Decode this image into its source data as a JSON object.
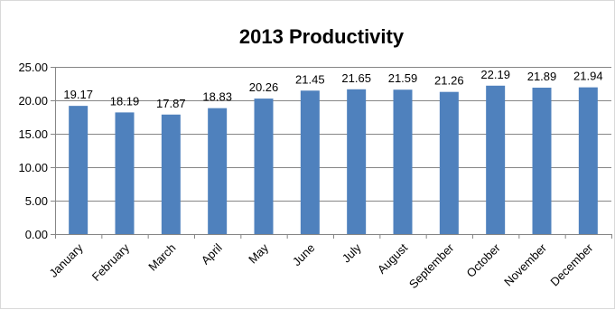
{
  "chart_data": {
    "type": "bar",
    "title": "2013 Productivity",
    "xlabel": "",
    "ylabel": "",
    "categories": [
      "January",
      "February",
      "March",
      "April",
      "May",
      "June",
      "July",
      "August",
      "September",
      "October",
      "November",
      "December"
    ],
    "values": [
      19.17,
      18.19,
      17.87,
      18.83,
      20.26,
      21.45,
      21.65,
      21.59,
      21.26,
      22.19,
      21.89,
      21.94
    ],
    "value_labels": [
      "19.17",
      "18.19",
      "17.87",
      "18.83",
      "20.26",
      "21.45",
      "21.65",
      "21.59",
      "21.26",
      "22.19",
      "21.89",
      "21.94"
    ],
    "ylim": [
      0,
      25
    ],
    "yticks": [
      0,
      5,
      10,
      15,
      20,
      25
    ],
    "ytick_labels": [
      "0.00",
      "5.00",
      "10.00",
      "15.00",
      "20.00",
      "25.00"
    ],
    "grid": true,
    "legend": "none",
    "bar_color": "#4f81bd"
  }
}
